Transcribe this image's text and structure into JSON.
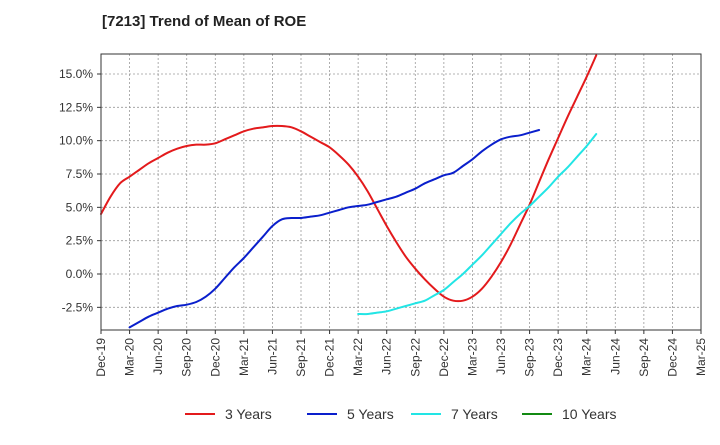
{
  "title": "[7213]  Trend of Mean of ROE",
  "chart_data": {
    "type": "line",
    "title": "[7213]  Trend of Mean of ROE",
    "xlabel": "",
    "ylabel": "",
    "x_ticks": [
      "Dec-19",
      "Mar-20",
      "Jun-20",
      "Sep-20",
      "Dec-20",
      "Mar-21",
      "Jun-21",
      "Sep-21",
      "Dec-21",
      "Mar-22",
      "Jun-22",
      "Sep-22",
      "Dec-22",
      "Mar-23",
      "Jun-23",
      "Sep-23",
      "Dec-23",
      "Mar-24",
      "Jun-24",
      "Sep-24",
      "Dec-24",
      "Mar-25"
    ],
    "y_ticks": [
      "-2.5%",
      "0.0%",
      "2.5%",
      "5.0%",
      "7.5%",
      "10.0%",
      "12.5%",
      "15.0%"
    ],
    "y_tick_values": [
      -2.5,
      0,
      2.5,
      5,
      7.5,
      10,
      12.5,
      15
    ],
    "ylim": [
      -4.2,
      16.5
    ],
    "grid": true,
    "legend_position": "bottom",
    "colors": {
      "3 Years": "#e31a1c",
      "5 Years": "#0a1fcc",
      "7 Years": "#22e5e5",
      "10 Years": "#138a13",
      "grid": "#9a9a9a",
      "axis": "#333333"
    },
    "series": [
      {
        "name": "3 Years",
        "color": "#e31a1c",
        "start_index": 0,
        "values": [
          4.5,
          5.8,
          6.8,
          7.3,
          7.8,
          8.3,
          8.7,
          9.1,
          9.4,
          9.6,
          9.7,
          9.7,
          9.8,
          10.1,
          10.4,
          10.7,
          10.9,
          11.0,
          11.1,
          11.1,
          11.0,
          10.7,
          10.3,
          9.9,
          9.5,
          8.9,
          8.2,
          7.3,
          6.2,
          4.9,
          3.6,
          2.4,
          1.3,
          0.4,
          -0.4,
          -1.1,
          -1.7,
          -2.0,
          -2.0,
          -1.7,
          -1.1,
          -0.2,
          0.9,
          2.2,
          3.7,
          5.2,
          6.9,
          8.6,
          10.2,
          11.8,
          13.3,
          14.8,
          16.4
        ]
      },
      {
        "name": "5 Years",
        "color": "#0a1fcc",
        "start_index": 3,
        "values": [
          -4.0,
          -3.6,
          -3.2,
          -2.9,
          -2.6,
          -2.4,
          -2.3,
          -2.1,
          -1.7,
          -1.1,
          -0.3,
          0.5,
          1.2,
          2.0,
          2.8,
          3.6,
          4.1,
          4.2,
          4.2,
          4.3,
          4.4,
          4.6,
          4.8,
          5.0,
          5.1,
          5.2,
          5.4,
          5.6,
          5.8,
          6.1,
          6.4,
          6.8,
          7.1,
          7.4,
          7.6,
          8.1,
          8.6,
          9.2,
          9.7,
          10.1,
          10.3,
          10.4,
          10.6,
          10.8
        ]
      },
      {
        "name": "7 Years",
        "color": "#22e5e5",
        "start_index": 27,
        "values": [
          -3.0,
          -3.0,
          -2.9,
          -2.8,
          -2.6,
          -2.4,
          -2.2,
          -2.0,
          -1.6,
          -1.2,
          -0.6,
          0.0,
          0.7,
          1.4,
          2.2,
          3.0,
          3.8,
          4.5,
          5.1,
          5.8,
          6.5,
          7.3,
          8.0,
          8.8,
          9.6,
          10.5
        ]
      },
      {
        "name": "10 Years",
        "color": "#138a13",
        "start_index": 0,
        "values": []
      }
    ]
  }
}
